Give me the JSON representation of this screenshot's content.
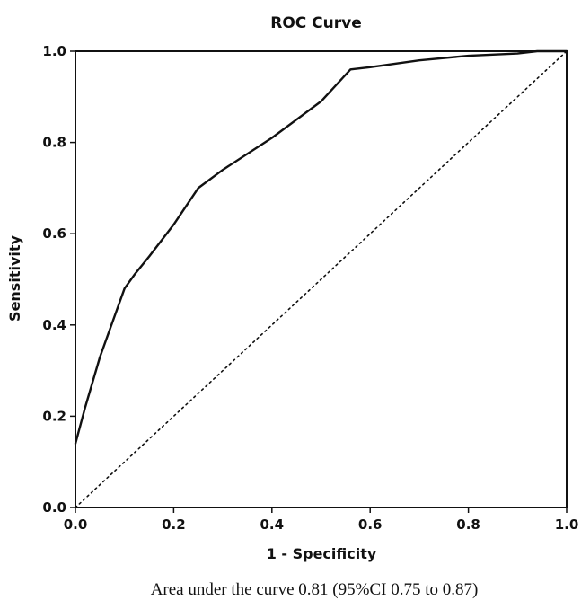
{
  "chart_data": {
    "type": "line",
    "title": "ROC Curve",
    "xlabel": "1 - Specificity",
    "ylabel": "Sensitivity",
    "xlim": [
      0.0,
      1.0
    ],
    "ylim": [
      0.0,
      1.0
    ],
    "x_ticks": [
      "0.0",
      "0.2",
      "0.4",
      "0.6",
      "0.8",
      "1.0"
    ],
    "y_ticks": [
      "0.0",
      "0.2",
      "0.4",
      "0.6",
      "0.8",
      "1.0"
    ],
    "grid": false,
    "series": [
      {
        "style": "solid",
        "color": "#111111",
        "x": [
          0.0,
          0.02,
          0.05,
          0.08,
          0.1,
          0.12,
          0.15,
          0.2,
          0.25,
          0.3,
          0.4,
          0.5,
          0.56,
          0.6,
          0.7,
          0.8,
          0.9,
          0.94,
          1.0
        ],
        "y": [
          0.14,
          0.22,
          0.33,
          0.42,
          0.48,
          0.51,
          0.55,
          0.62,
          0.7,
          0.74,
          0.81,
          0.89,
          0.96,
          0.965,
          0.98,
          0.99,
          0.995,
          1.0,
          1.0
        ]
      },
      {
        "style": "dotted",
        "color": "#111111",
        "x": [
          0.0,
          1.0
        ],
        "y": [
          0.0,
          1.0
        ]
      }
    ]
  },
  "caption": "Area under the curve 0.81 (95%CI 0.75 to 0.87)"
}
